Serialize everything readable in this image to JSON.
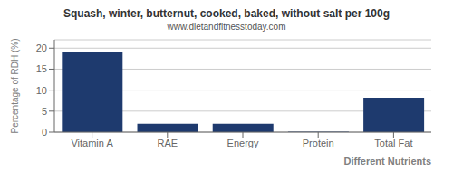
{
  "chart_data": {
    "type": "bar",
    "title": "Squash, winter, butternut, cooked, baked, without salt per 100g",
    "subtitle": "www.dietandfitnesstoday.com",
    "categories": [
      "Vitamin A",
      "RAE",
      "Energy",
      "Protein",
      "Total Fat"
    ],
    "values": [
      19.0,
      2.0,
      2.0,
      0.1,
      8.2
    ],
    "color": "#1e3a6e",
    "xlabel": "Different Nutrients",
    "ylabel": "Percentage of RDH (%)",
    "ylim": [
      0,
      22
    ],
    "yticks": [
      0,
      5,
      10,
      15,
      20
    ],
    "grid": true
  }
}
